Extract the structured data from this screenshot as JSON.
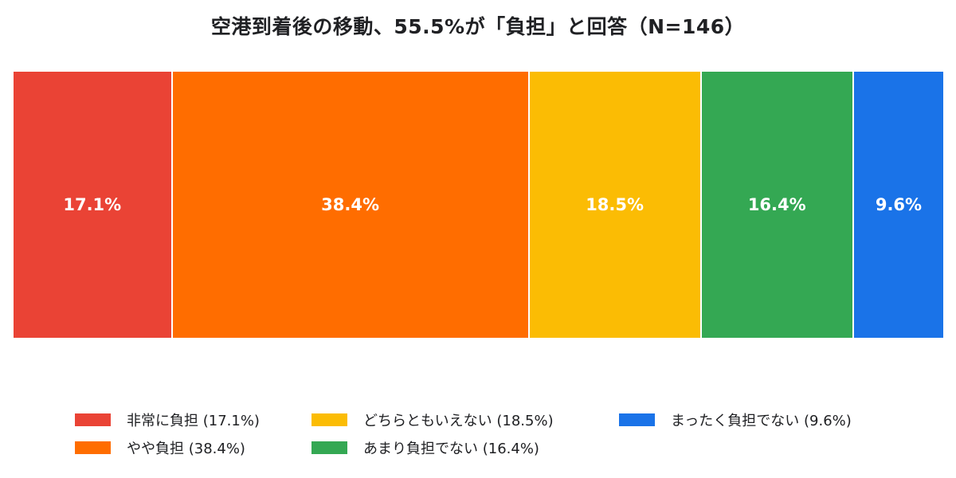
{
  "title": "空港到着後の移動、55.5%が「負担」と回答（N=146）",
  "chart_data": {
    "type": "bar",
    "orientation": "horizontal-stacked-100",
    "title": "空港到着後の移動、55.5%が「負担」と回答（N=146）",
    "n": 146,
    "categories": [
      "非常に負担",
      "やや負担",
      "どちらともいえない",
      "あまり負担でない",
      "まったく負担でない"
    ],
    "values": [
      17.1,
      38.4,
      18.5,
      16.4,
      9.6
    ],
    "colors": [
      "#EA4335",
      "#FF6D00",
      "#FBBC04",
      "#34A853",
      "#1A73E8"
    ],
    "xlabel": "",
    "ylabel": "",
    "grid": false,
    "legend_position": "bottom"
  },
  "segments": [
    {
      "label": "17.1%",
      "value": 17.1,
      "color": "#EA4335"
    },
    {
      "label": "38.4%",
      "value": 38.4,
      "color": "#FF6D00"
    },
    {
      "label": "18.5%",
      "value": 18.5,
      "color": "#FBBC04"
    },
    {
      "label": "16.4%",
      "value": 16.4,
      "color": "#34A853"
    },
    {
      "label": "9.6%",
      "value": 9.6,
      "color": "#1A73E8"
    }
  ],
  "legend": [
    {
      "label": "非常に負担 (17.1%)",
      "color": "#EA4335"
    },
    {
      "label": "やや負担 (38.4%)",
      "color": "#FF6D00"
    },
    {
      "label": "どちらともいえない (18.5%)",
      "color": "#FBBC04"
    },
    {
      "label": "あまり負担でない (16.4%)",
      "color": "#34A853"
    },
    {
      "label": "まったく負担でない (9.6%)",
      "color": "#1A73E8"
    }
  ]
}
